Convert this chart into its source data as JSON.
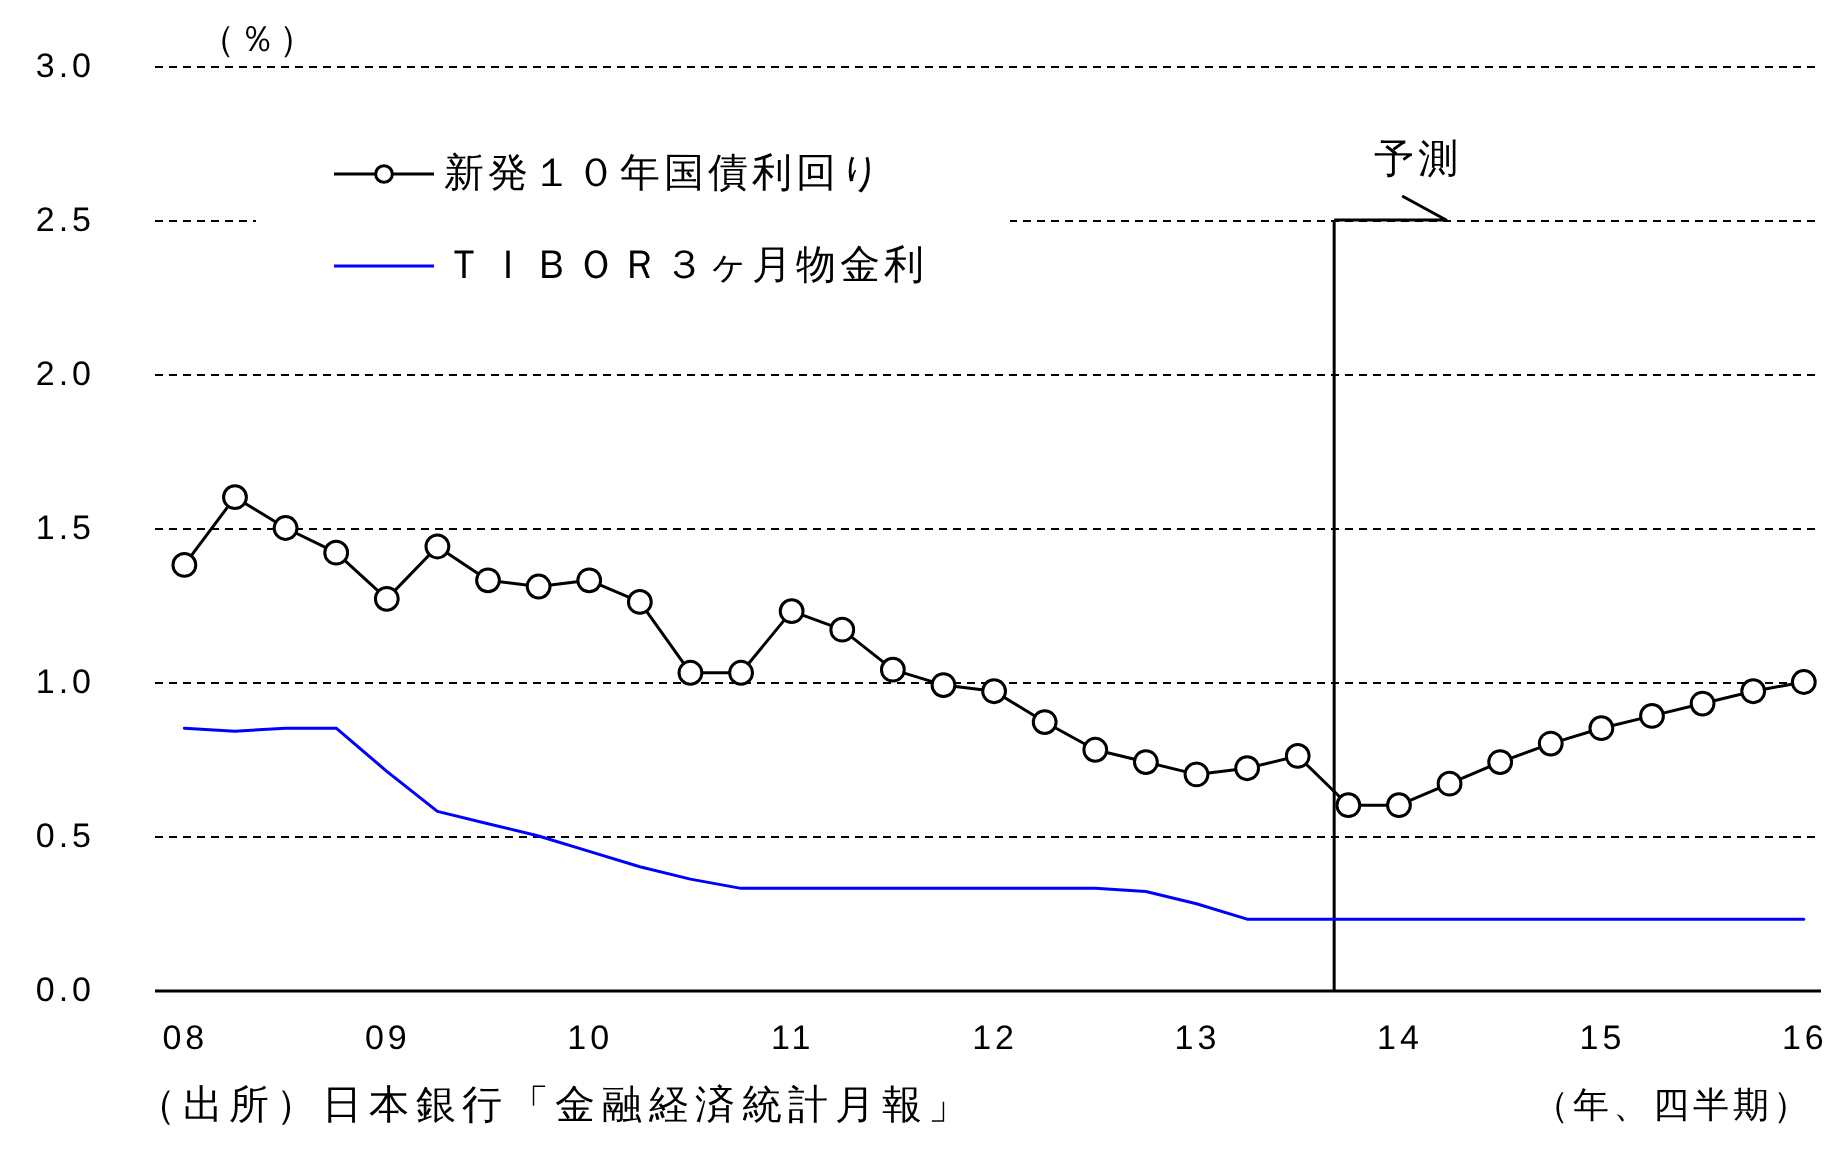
{
  "chart_data": {
    "type": "line",
    "ylabel": "（％）",
    "xlabel": "（年、四半期）",
    "annotations": [
      "（出所）日本銀行「金融経済統計月報」"
    ],
    "x": [
      2008,
      2008.25,
      2008.5,
      2008.75,
      2009,
      2009.25,
      2009.5,
      2009.75,
      2010,
      2010.25,
      2010.5,
      2010.75,
      2011,
      2011.25,
      2011.5,
      2011.75,
      2012,
      2012.25,
      2012.5,
      2012.75,
      2013,
      2013.25,
      2013.5,
      2013.75,
      2014,
      2014.25,
      2014.5,
      2014.75,
      2015,
      2015.25,
      2015.5,
      2015.75,
      2016
    ],
    "series": [
      {
        "name": "新発１０年国債利回り",
        "color": "#000000",
        "marker": "circle",
        "values": [
          1.38,
          1.6,
          1.5,
          1.42,
          1.27,
          1.44,
          1.33,
          1.31,
          1.33,
          1.26,
          1.03,
          1.03,
          1.23,
          1.17,
          1.04,
          0.99,
          0.97,
          0.87,
          0.78,
          0.74,
          0.7,
          0.72,
          0.76,
          0.6,
          0.6,
          0.67,
          0.74,
          0.8,
          0.85,
          0.89,
          0.93,
          0.97,
          1.0
        ]
      },
      {
        "name": "ＴＩＢＯＲ３ヶ月物金利",
        "color": "#0000ff",
        "marker": "none",
        "values": [
          0.85,
          0.84,
          0.85,
          0.85,
          0.71,
          0.58,
          0.54,
          0.5,
          0.45,
          0.4,
          0.36,
          0.33,
          0.33,
          0.33,
          0.33,
          0.33,
          0.33,
          0.33,
          0.33,
          0.32,
          0.28,
          0.23,
          0.23,
          0.23,
          0.23,
          0.23,
          0.23,
          0.23,
          0.23,
          0.23,
          0.23,
          0.23,
          0.23
        ]
      }
    ],
    "xlim": [
      2007.85,
      2016.08
    ],
    "ylim": [
      0,
      3
    ],
    "xticks": [
      {
        "value": 2008,
        "label": "08"
      },
      {
        "value": 2009,
        "label": "09"
      },
      {
        "value": 2010,
        "label": "10"
      },
      {
        "value": 2011,
        "label": "11"
      },
      {
        "value": 2012,
        "label": "12"
      },
      {
        "value": 2013,
        "label": "13"
      },
      {
        "value": 2014,
        "label": "14"
      },
      {
        "value": 2015,
        "label": "15"
      },
      {
        "value": 2016,
        "label": "16"
      }
    ],
    "yticks": [
      {
        "value": 0,
        "label": "0.0"
      },
      0.5,
      {
        "value": 1,
        "label": "1.0"
      },
      1.5,
      {
        "value": 2,
        "label": "2.0"
      },
      2.5,
      {
        "value": 3,
        "label": "3.0"
      }
    ],
    "grid": "y",
    "legend": "top left",
    "ref_lines": [
      {
        "axis": "x",
        "value": 2013.68,
        "label": "予測",
        "color": "#000000"
      }
    ]
  }
}
